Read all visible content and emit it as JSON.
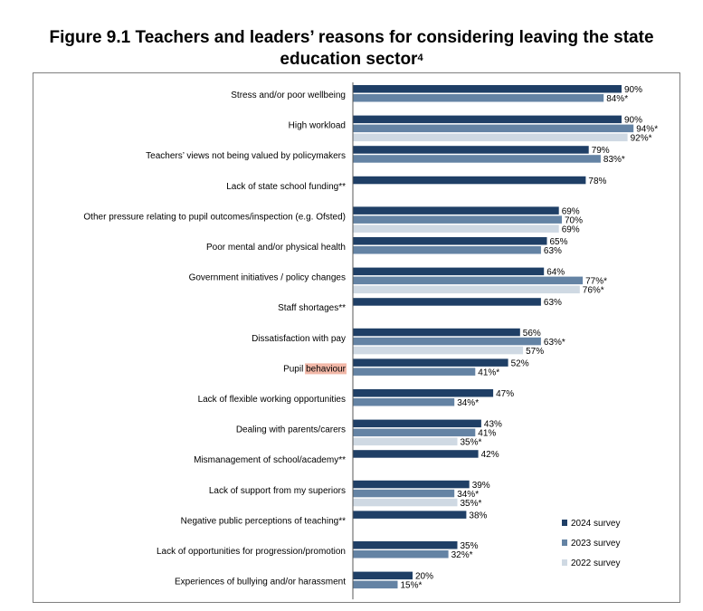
{
  "title": {
    "text": "Figure 9.1 Teachers and leaders’ reasons for considering leaving the state",
    "line2": "education sector",
    "superscript": "4"
  },
  "colors": {
    "2024 survey": "#1f3f66",
    "2023 survey": "#6483a4",
    "2022 survey": "#cfd9e3",
    "highlight": "#f2b8a8"
  },
  "chart_data": {
    "type": "bar",
    "orientation": "horizontal",
    "xlim": [
      0,
      100
    ],
    "grid": false,
    "legend_position": "bottom-right",
    "categories": [
      "Stress and/or poor wellbeing",
      "High workload",
      "Teachers’ views not being valued by policymakers",
      "Lack of state school funding**",
      "Other pressure relating to pupil outcomes/inspection (e.g.  Ofsted)",
      "Poor mental and/or physical health",
      "Government initiatives / policy changes",
      "Staff shortages**",
      "Dissatisfaction with pay",
      "Pupil behaviour",
      "Lack of flexible working opportunities",
      "Dealing with parents/carers",
      "Mismanagement of school/academy**",
      "Lack of support from my superiors",
      "Negative public perceptions of teaching**",
      "Lack of opportunities for progression/promotion",
      "Experiences of bullying and/or harassment"
    ],
    "highlighted_word": {
      "category_index": 9,
      "prefix": "Pupil ",
      "word": "behaviour"
    },
    "series": [
      {
        "name": "2024 survey",
        "values": [
          90,
          90,
          79,
          78,
          69,
          65,
          64,
          63,
          56,
          52,
          47,
          43,
          42,
          39,
          38,
          35,
          20
        ],
        "labels": [
          "90%",
          "90%",
          "79%",
          "78%",
          "69%",
          "65%",
          "64%",
          "63%",
          "56%",
          "52%",
          "47%",
          "43%",
          "42%",
          "39%",
          "38%",
          "35%",
          "20%"
        ]
      },
      {
        "name": "2023 survey",
        "values": [
          84,
          94,
          83,
          null,
          70,
          63,
          77,
          null,
          63,
          41,
          34,
          41,
          null,
          34,
          null,
          32,
          15
        ],
        "labels": [
          "84%*",
          "94%*",
          "83%*",
          null,
          "70%",
          "63%",
          "77%*",
          null,
          "63%*",
          "41%*",
          "34%*",
          "41%",
          null,
          "34%*",
          null,
          "32%*",
          "15%*"
        ]
      },
      {
        "name": "2022 survey",
        "values": [
          null,
          92,
          null,
          null,
          69,
          null,
          76,
          null,
          57,
          null,
          null,
          35,
          null,
          35,
          null,
          null,
          null
        ],
        "labels": [
          null,
          "92%*",
          null,
          null,
          "69%",
          null,
          "76%*",
          null,
          "57%",
          null,
          null,
          "35%*",
          null,
          "35%*",
          null,
          null,
          null
        ]
      }
    ]
  }
}
